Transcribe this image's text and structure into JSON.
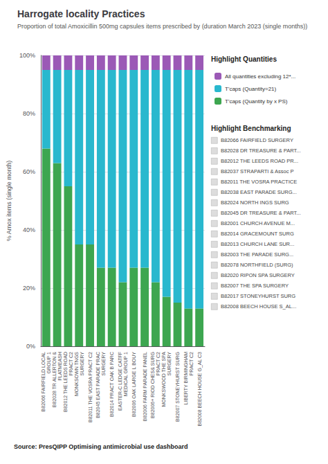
{
  "chart_data": {
    "type": "bar",
    "title": "Harrogate locality Practices",
    "subtitle": "Proportion of total Amoxicillin 500mg capsules items prescribed by (duration March 2023 (single months))",
    "source": "Source: PresQIPP Optimising antimicrobial use dashboard",
    "ylabel": "% Amox items (single month)",
    "categories": [
      "B82066 FAIRFIELD LOCAL\nGROUP 1",
      "B82028 TR ALLERTON &\nFLATMEASH",
      "B82012 THE LEEDS ROAD\nPRACT C2",
      "MONKSOWN TNGS\nSURGERY",
      "B82011 THE VOSRA PRACT C2",
      "B82045 EAST PARADE PRAC\nSURGERY",
      "B82014 PRACT OAK B PARC",
      "EASTER-C LEDGE CATFF\nMEDICAL GROUP 1",
      "B82006 OAK LARGE L BOUY",
      "B82006 FARM PARADE PANEL",
      "B82006+ RIOD CHES& SURG\nPRACT C2",
      "MONKSWOOD THE SPA\nSURGERY",
      "B82007 STONEYHURST SURG",
      "LIBERTY BIRMINGHAM\nPRACT C2",
      "B82008 BEECH HOUSE G_AL C3"
    ],
    "series": [
      {
        "name": "T'caps (Quantity by x PS)",
        "color": "#3da650",
        "values": [
          0.68,
          0.63,
          0.55,
          0.35,
          0.35,
          0.27,
          0.27,
          0.22,
          0.27,
          0.27,
          0.22,
          0.17,
          0.15,
          0.13,
          0.13
        ]
      },
      {
        "name": "T'caps (Quantity=21)",
        "color": "#29b8ce",
        "values": [
          0.27,
          0.32,
          0.4,
          0.6,
          0.6,
          0.68,
          0.68,
          0.73,
          0.68,
          0.68,
          0.73,
          0.78,
          0.8,
          0.82,
          0.82
        ]
      },
      {
        "name": "All quantities excluding 12*...",
        "color": "#9b59b6",
        "values": [
          0.05,
          0.05,
          0.05,
          0.05,
          0.05,
          0.05,
          0.05,
          0.05,
          0.05,
          0.05,
          0.05,
          0.05,
          0.05,
          0.05,
          0.05
        ]
      }
    ],
    "stacked": true,
    "ylim": [
      0,
      1.0
    ],
    "yticks": [
      {
        "value": 0.0,
        "label": "0%"
      },
      {
        "value": 0.2,
        "label": "20%"
      },
      {
        "value": 0.4,
        "label": "40%"
      },
      {
        "value": 0.6,
        "label": "60%"
      },
      {
        "value": 0.8,
        "label": "80%"
      },
      {
        "value": 1.0,
        "label": "100%"
      }
    ],
    "grid": true,
    "legend": "right",
    "legend_title": "Highlight Quantities",
    "benchmarking": {
      "title": "Highlight Benchmarking",
      "items": [
        "B82066 FAIRFIELD SURGERY",
        "B82028 DR TREASURE & PART...",
        "B82012 THE LEEDS ROAD PR...",
        "B82037 STRAPARTI & Assoc P",
        "B82011 THE VOSRA PRACTICE",
        "B82038 EAST PARADE SURG...",
        "B82024 NORTH INGS SURG",
        "B82045 DR TREASURE & PART...",
        "B82001 CHURCH AVENUE M...",
        "B82014 GRACEMOUNT SURG",
        "B82013 CHURCH LANE SUR...",
        "B82003 THE PARADE SURG...",
        "B82078 NORTHFIELD (SURG)",
        "B82020 RIPON SPA SURGERY",
        "B82007 THE SPA SURGERY",
        "B82017 STONEYHURST SURG",
        "B82008 BEECH HOUSE S_AL..."
      ]
    }
  }
}
